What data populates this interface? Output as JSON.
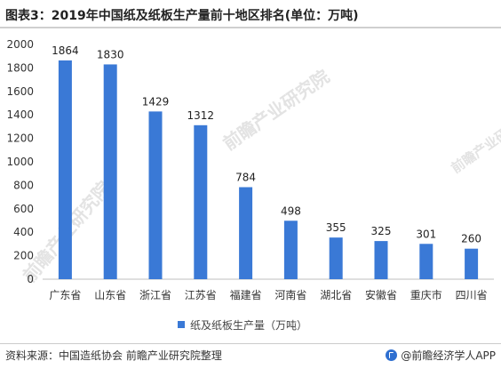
{
  "title": "图表3：2019年中国纸及纸板生产量前十地区排名(单位：万吨)",
  "source": "资料来源：中国造纸协会 前瞻产业研究院整理",
  "brand": "@前瞻经济学人APP",
  "watermark": "前瞻产业研究院",
  "colors": {
    "bar": "#3a79d6",
    "axis": "#bfbfbf",
    "text": "#333333"
  },
  "chart_data": {
    "type": "bar",
    "categories": [
      "广东省",
      "山东省",
      "浙江省",
      "江苏省",
      "福建省",
      "河南省",
      "湖北省",
      "安徽省",
      "重庆市",
      "四川省"
    ],
    "series": [
      {
        "name": "纸及纸板生产量（万吨）",
        "values": [
          1864,
          1830,
          1429,
          1312,
          784,
          498,
          355,
          325,
          301,
          260
        ]
      }
    ],
    "ylim": [
      0,
      2000
    ],
    "yticks": [
      0,
      200,
      400,
      600,
      800,
      1000,
      1200,
      1400,
      1600,
      1800,
      2000
    ],
    "grid": false,
    "legend_position": "bottom"
  }
}
